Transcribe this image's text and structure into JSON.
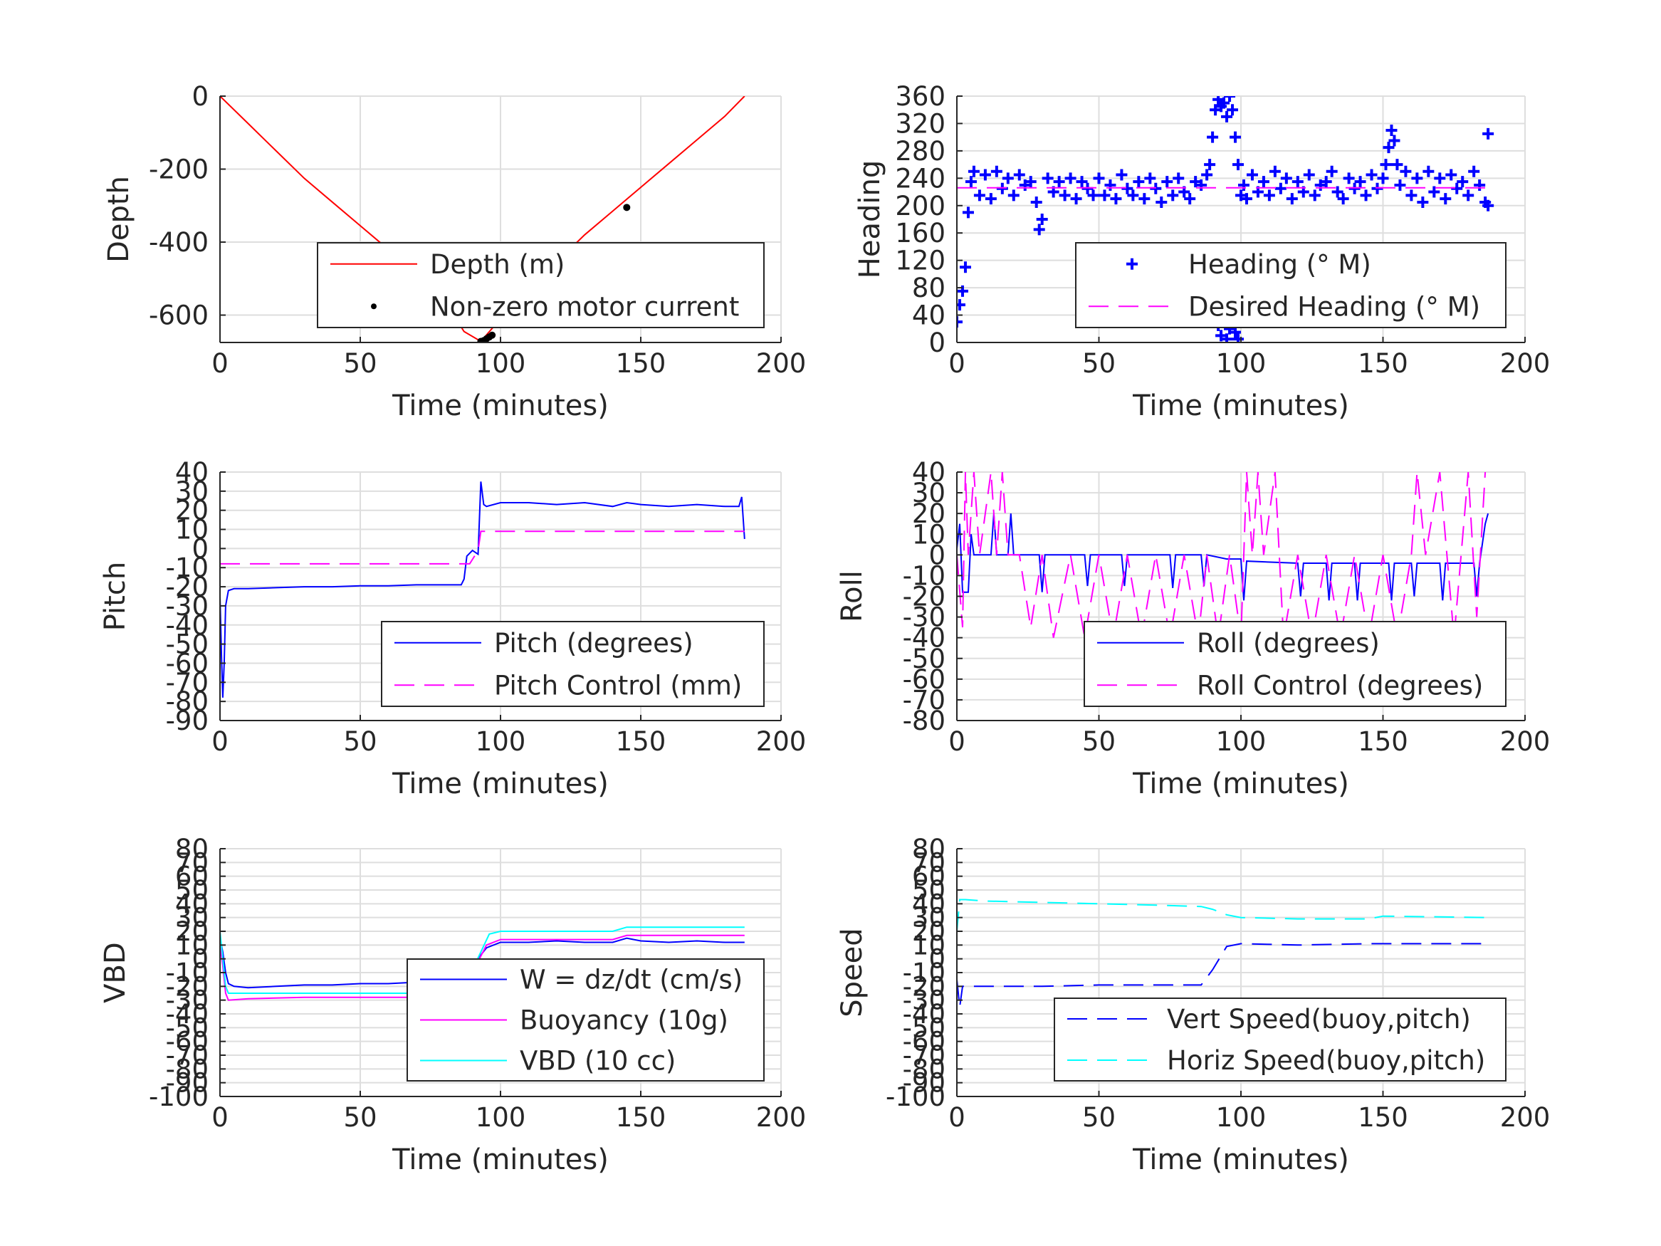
{
  "chart_data": [
    {
      "id": "depth",
      "type": "line",
      "xlabel": "Time (minutes)",
      "ylabel": "Depth",
      "xlim": [
        0,
        200
      ],
      "ylim": [
        -675,
        0
      ],
      "xticks": [
        0,
        50,
        100,
        150,
        200
      ],
      "yticks": [
        0,
        -200,
        -400,
        -600
      ],
      "grid": true,
      "legend": {
        "placement": "lower-right",
        "entries": [
          "Depth (m)",
          "Non-zero motor current"
        ]
      },
      "series": [
        {
          "name": "Depth (m)",
          "style": "solid",
          "color": "#ff0000",
          "x": [
            0,
            10,
            20,
            30,
            40,
            50,
            60,
            70,
            80,
            87,
            93,
            100,
            110,
            120,
            130,
            140,
            150,
            160,
            170,
            180,
            187
          ],
          "y": [
            0,
            -75,
            -150,
            -225,
            -290,
            -355,
            -420,
            -490,
            -560,
            -645,
            -672,
            -610,
            -535,
            -455,
            -380,
            -315,
            -250,
            -185,
            -120,
            -55,
            0
          ]
        },
        {
          "name": "Non-zero motor current",
          "style": "dots",
          "color": "#000000",
          "x": [
            93,
            94,
            95,
            96,
            97,
            145
          ],
          "y": [
            -672,
            -670,
            -665,
            -660,
            -655,
            -305
          ]
        }
      ]
    },
    {
      "id": "heading",
      "type": "scatter",
      "xlabel": "Time (minutes)",
      "ylabel": "Heading",
      "xlim": [
        0,
        200
      ],
      "ylim": [
        0,
        360
      ],
      "xticks": [
        0,
        50,
        100,
        150,
        200
      ],
      "yticks": [
        0,
        40,
        80,
        120,
        160,
        200,
        240,
        280,
        320,
        360
      ],
      "grid": true,
      "legend": {
        "placement": "lower-right",
        "entries": [
          "Heading (° M)",
          "Desired Heading (° M)"
        ]
      },
      "series": [
        {
          "name": "Heading (° M)",
          "style": "plus",
          "color": "#0000ff",
          "x": [
            0,
            1,
            2,
            3,
            4,
            5,
            6,
            8,
            10,
            12,
            14,
            16,
            18,
            20,
            22,
            24,
            26,
            28,
            29,
            30,
            32,
            34,
            36,
            38,
            40,
            42,
            44,
            46,
            48,
            50,
            52,
            54,
            56,
            58,
            60,
            62,
            64,
            66,
            68,
            70,
            72,
            74,
            76,
            78,
            80,
            82,
            84,
            86,
            88,
            89,
            90,
            91,
            92,
            93,
            94,
            95,
            96,
            97,
            98,
            99,
            100,
            101,
            102,
            104,
            106,
            108,
            110,
            112,
            114,
            116,
            118,
            120,
            122,
            124,
            126,
            128,
            130,
            132,
            134,
            136,
            138,
            140,
            142,
            144,
            146,
            148,
            150,
            151,
            152,
            153,
            154,
            155,
            156,
            158,
            160,
            162,
            164,
            166,
            168,
            170,
            172,
            174,
            176,
            178,
            180,
            182,
            184,
            186,
            187
          ],
          "y": [
            30,
            55,
            75,
            110,
            190,
            235,
            250,
            215,
            245,
            210,
            250,
            225,
            240,
            215,
            245,
            230,
            235,
            205,
            165,
            180,
            240,
            220,
            235,
            215,
            240,
            210,
            235,
            225,
            215,
            240,
            215,
            230,
            210,
            245,
            225,
            215,
            235,
            210,
            240,
            225,
            205,
            235,
            215,
            240,
            220,
            210,
            235,
            230,
            245,
            260,
            300,
            340,
            355,
            345,
            350,
            330,
            360,
            340,
            300,
            260,
            215,
            230,
            210,
            245,
            220,
            235,
            215,
            250,
            225,
            240,
            210,
            235,
            220,
            245,
            215,
            230,
            235,
            250,
            220,
            210,
            240,
            225,
            235,
            215,
            245,
            225,
            240,
            260,
            285,
            310,
            295,
            260,
            230,
            250,
            215,
            240,
            205,
            250,
            220,
            240,
            210,
            245,
            225,
            235,
            215,
            250,
            230,
            205,
            200
          ]
        },
        {
          "name": "",
          "style": "plus",
          "color": "#0000ff",
          "x": [
            92,
            93,
            94,
            95,
            96,
            97,
            98,
            99,
            187
          ],
          "y": [
            25,
            10,
            30,
            5,
            20,
            35,
            15,
            5,
            305
          ]
        },
        {
          "name": "Desired Heading (° M)",
          "style": "dashed",
          "color": "#ff00ff",
          "x": [
            0,
            187
          ],
          "y": [
            226,
            226
          ]
        }
      ]
    },
    {
      "id": "pitch",
      "type": "line",
      "xlabel": "Time (minutes)",
      "ylabel": "Pitch",
      "xlim": [
        0,
        200
      ],
      "ylim": [
        -90,
        40
      ],
      "xticks": [
        0,
        50,
        100,
        150,
        200
      ],
      "yticks": [
        40,
        30,
        20,
        10,
        0,
        -10,
        -20,
        -30,
        -40,
        -50,
        -60,
        -70,
        -80,
        -90
      ],
      "grid": true,
      "legend": {
        "placement": "lower-right",
        "entries": [
          "Pitch (degrees)",
          "Pitch Control (mm)"
        ]
      },
      "series": [
        {
          "name": "Pitch (degrees)",
          "style": "solid",
          "color": "#0000ff",
          "x": [
            0,
            0.5,
            1,
            1.5,
            2,
            3,
            5,
            10,
            20,
            30,
            40,
            50,
            60,
            70,
            80,
            86,
            87,
            88,
            90,
            92,
            93,
            94,
            95,
            100,
            110,
            120,
            130,
            140,
            145,
            150,
            160,
            170,
            180,
            185,
            186,
            187
          ],
          "y": [
            -25,
            -55,
            -78,
            -60,
            -30,
            -22,
            -21,
            -21,
            -20.5,
            -20,
            -20,
            -19.5,
            -19.5,
            -19,
            -19,
            -19,
            -16,
            -4,
            -1,
            -3,
            35,
            23,
            22,
            24,
            24,
            23,
            24,
            22,
            24,
            23,
            22,
            23,
            22,
            22,
            27,
            5
          ]
        },
        {
          "name": "Pitch Control (mm)",
          "style": "dashed",
          "color": "#ff00ff",
          "x": [
            0,
            89,
            92,
            93,
            187
          ],
          "y": [
            -8,
            -8,
            -1,
            9,
            9
          ]
        }
      ]
    },
    {
      "id": "roll",
      "type": "line",
      "xlabel": "Time (minutes)",
      "ylabel": "Roll",
      "xlim": [
        0,
        200
      ],
      "ylim": [
        -80,
        40
      ],
      "xticks": [
        0,
        50,
        100,
        150,
        200
      ],
      "yticks": [
        40,
        30,
        20,
        10,
        0,
        -10,
        -20,
        -30,
        -40,
        -50,
        -60,
        -70,
        -80
      ],
      "grid": true,
      "legend": {
        "placement": "lower-right",
        "entries": [
          "Roll (degrees)",
          "Roll Control (degrees)"
        ]
      },
      "series": [
        {
          "name": "Roll (degrees)",
          "style": "solid",
          "color": "#0000ff",
          "x": [
            0,
            1,
            2,
            3,
            4,
            5,
            6,
            7,
            12,
            13,
            14,
            18,
            19,
            20,
            29,
            30,
            31,
            45,
            46,
            47,
            58,
            59,
            60,
            75,
            76,
            77,
            86,
            87,
            88,
            95,
            96,
            97,
            100,
            101,
            102,
            120,
            121,
            122,
            130,
            131,
            132,
            140,
            141,
            142,
            152,
            153,
            154,
            160,
            161,
            162,
            170,
            171,
            172,
            182,
            183,
            184,
            186,
            187
          ],
          "y": [
            3,
            15,
            -18,
            -18,
            -18,
            10,
            0,
            0,
            0,
            20,
            0,
            0,
            20,
            0,
            0,
            -18,
            0,
            0,
            -15,
            0,
            0,
            -15,
            0,
            0,
            -16,
            0,
            0,
            -15,
            0,
            -2,
            -2,
            -2,
            -2,
            -22,
            -3,
            -4,
            -20,
            -4,
            -4,
            -22,
            -4,
            -4,
            -22,
            -4,
            -4,
            -22,
            -4,
            -4,
            -20,
            -4,
            -4,
            -22,
            -4,
            -4,
            -20,
            -4,
            15,
            20
          ]
        },
        {
          "name": "Roll Control (degrees)",
          "style": "dashed",
          "color": "#ff00ff",
          "x": [
            0,
            2,
            3,
            4,
            6,
            8,
            12,
            14,
            16,
            18,
            22,
            26,
            30,
            34,
            40,
            45,
            50,
            55,
            60,
            65,
            70,
            75,
            80,
            85,
            88,
            92,
            96,
            100,
            102,
            104,
            106,
            108,
            112,
            115,
            120,
            125,
            130,
            135,
            140,
            145,
            150,
            155,
            160,
            162,
            165,
            170,
            175,
            180,
            183,
            186
          ],
          "y": [
            0,
            -35,
            40,
            0,
            40,
            0,
            40,
            0,
            40,
            0,
            0,
            -35,
            0,
            -40,
            0,
            -40,
            0,
            -40,
            0,
            -40,
            0,
            -40,
            0,
            -40,
            0,
            -40,
            0,
            -40,
            40,
            0,
            40,
            0,
            40,
            -40,
            0,
            -40,
            0,
            -40,
            0,
            -40,
            0,
            -40,
            0,
            40,
            0,
            40,
            -40,
            40,
            -30,
            40
          ]
        }
      ]
    },
    {
      "id": "vbd",
      "type": "line",
      "xlabel": "Time (minutes)",
      "ylabel": "VBD",
      "xlim": [
        0,
        200
      ],
      "ylim": [
        -100,
        80
      ],
      "xticks": [
        0,
        50,
        100,
        150,
        200
      ],
      "yticks": [
        80,
        70,
        60,
        50,
        40,
        30,
        20,
        10,
        0,
        -10,
        -20,
        -30,
        -40,
        -50,
        -60,
        -70,
        -80,
        -90,
        -100
      ],
      "ytick_labels": [
        "80",
        "70",
        "60",
        "50",
        "40",
        "30",
        "20",
        "10",
        "0",
        "-10",
        "-20",
        "-30",
        "-40",
        "-50",
        "-60",
        "-70",
        "-80",
        "-90",
        "-100"
      ],
      "grid": true,
      "legend": {
        "placement": "lower-right",
        "entries": [
          "W = dz/dt (cm/s)",
          "Buoyancy (10g)",
          "VBD (10 cc)"
        ]
      },
      "series": [
        {
          "name": "W = dz/dt (cm/s)",
          "style": "solid",
          "color": "#0000ff",
          "x": [
            0,
            1,
            2,
            3,
            5,
            10,
            20,
            30,
            40,
            50,
            60,
            70,
            80,
            86,
            88,
            90,
            95,
            100,
            110,
            120,
            130,
            140,
            145,
            150,
            160,
            170,
            180,
            187
          ],
          "y": [
            15,
            5,
            -10,
            -18,
            -20,
            -21,
            -20,
            -19,
            -19,
            -18,
            -18,
            -17,
            -17,
            -17,
            -12,
            -5,
            8,
            12,
            12,
            13,
            12,
            12,
            15,
            13,
            12,
            13,
            12,
            12
          ]
        },
        {
          "name": "Buoyancy (10g)",
          "style": "solid",
          "color": "#ff00ff",
          "x": [
            0,
            1,
            2,
            3,
            10,
            30,
            50,
            70,
            86,
            88,
            90,
            95,
            100,
            140,
            145,
            150,
            187
          ],
          "y": [
            10,
            -5,
            -25,
            -30,
            -29,
            -28,
            -28,
            -28,
            -28,
            -20,
            -10,
            10,
            14,
            14,
            17,
            17,
            17
          ]
        },
        {
          "name": "VBD (10 cc)",
          "style": "solid",
          "color": "#00ffff",
          "x": [
            0,
            1,
            2,
            3,
            10,
            30,
            50,
            70,
            86,
            88,
            90,
            96,
            100,
            140,
            145,
            187
          ],
          "y": [
            20,
            0,
            -20,
            -25,
            -25,
            -25,
            -25,
            -25,
            -25,
            -18,
            -8,
            18,
            20,
            20,
            23,
            23
          ]
        }
      ]
    },
    {
      "id": "speed",
      "type": "line",
      "xlabel": "Time (minutes)",
      "ylabel": "Speed",
      "xlim": [
        0,
        200
      ],
      "ylim": [
        -100,
        80
      ],
      "xticks": [
        0,
        50,
        100,
        150,
        200
      ],
      "yticks": [
        80,
        70,
        60,
        50,
        40,
        30,
        20,
        10,
        0,
        -10,
        -20,
        -30,
        -40,
        -50,
        -60,
        -70,
        -80,
        -90,
        -100
      ],
      "ytick_labels": [
        "80",
        "70",
        "60",
        "50",
        "40",
        "30",
        "20",
        "10",
        "0",
        "-10",
        "-20",
        "-30",
        "-40",
        "-50",
        "-60",
        "-70",
        "-80",
        "-90",
        "-100"
      ],
      "grid": true,
      "legend": {
        "placement": "lower-right",
        "entries": [
          "Vert Speed(buoy,pitch)",
          "Horiz Speed(buoy,pitch)"
        ]
      },
      "series": [
        {
          "name": "Vert Speed(buoy,pitch)",
          "style": "dashed",
          "color": "#0000ff",
          "x": [
            0,
            1,
            2,
            3,
            10,
            30,
            50,
            70,
            86,
            90,
            95,
            100,
            120,
            145,
            150,
            187
          ],
          "y": [
            -15,
            -35,
            -20,
            -20,
            -20,
            -20,
            -19,
            -19,
            -19,
            -8,
            9,
            11,
            10,
            11,
            11,
            11
          ]
        },
        {
          "name": "Horiz Speed(buoy,pitch)",
          "style": "dashed",
          "color": "#00ffff",
          "x": [
            0,
            1,
            3,
            10,
            30,
            50,
            70,
            86,
            90,
            95,
            100,
            120,
            145,
            150,
            187
          ],
          "y": [
            20,
            43,
            43,
            42,
            41,
            40,
            39,
            38,
            36,
            32,
            30,
            29,
            29,
            31,
            30
          ]
        }
      ]
    }
  ]
}
